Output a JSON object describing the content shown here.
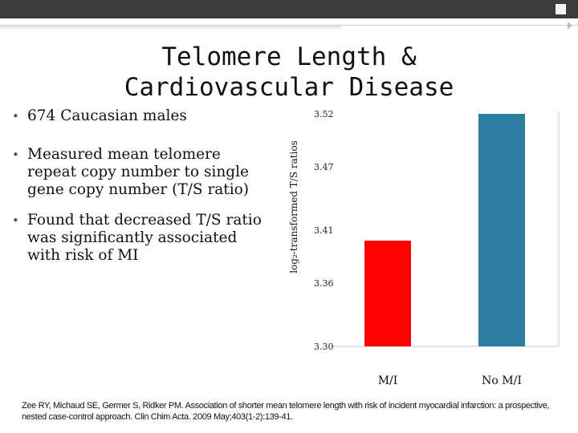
{
  "slide": {
    "title_line1": "Telomere Length &",
    "title_line2": "Cardiovascular Disease",
    "bullets": [
      "674 Caucasian males",
      "Measured mean telomere repeat copy number to single gene copy number (T/S ratio)",
      "Found that decreased T/S ratio was significantly associated with risk of MI"
    ],
    "bullet_glyph": "•",
    "reference": "Zee RY, Michaud SE, Germer S, Ridker PM.  Association of shorter mean telomere length with risk of incident myocardial infarction: a prospective, nested case-control approach. Clin Chim Acta. 2009 May;403(1-2):139-41."
  },
  "chart_data": {
    "type": "bar",
    "title": "",
    "categories": [
      "M/I",
      "No M/I"
    ],
    "values": [
      3.4,
      3.52
    ],
    "colors": [
      "#ff0000",
      "#2e7ca0"
    ],
    "xlabel": "",
    "ylabel": "log₂-transformed T/S ratios",
    "ylim": [
      3.3,
      3.52
    ],
    "yticks": [
      3.3,
      3.36,
      3.41,
      3.47,
      3.52
    ],
    "ytick_labels": [
      "3.30",
      "3.36",
      "3.41",
      "3.47",
      "3.52"
    ],
    "grid": false
  }
}
